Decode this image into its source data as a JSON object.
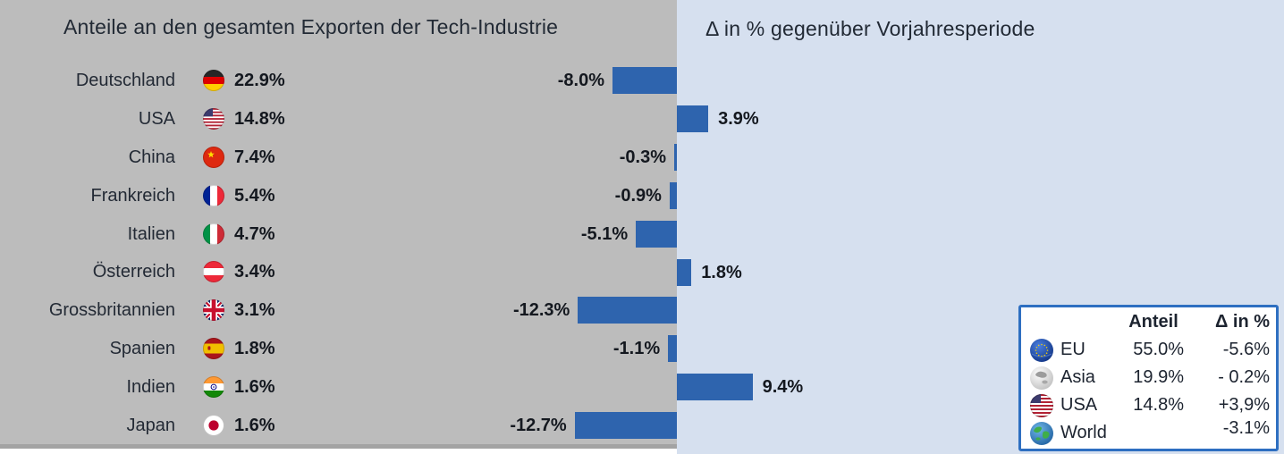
{
  "left_panel": {
    "title": "Anteile an den gesamten Exporten der Tech-Industrie"
  },
  "right_panel": {
    "title": "Δ in % gegenüber Vorjahresperiode"
  },
  "countries": [
    {
      "name": "Deutschland",
      "share": "22.9%",
      "delta": -8.0,
      "delta_label": "-8.0%",
      "flag": "germany"
    },
    {
      "name": "USA",
      "share": "14.8%",
      "delta": 3.9,
      "delta_label": "3.9%",
      "flag": "usa"
    },
    {
      "name": "China",
      "share": "7.4%",
      "delta": -0.3,
      "delta_label": "-0.3%",
      "flag": "china"
    },
    {
      "name": "Frankreich",
      "share": "5.4%",
      "delta": -0.9,
      "delta_label": "-0.9%",
      "flag": "france"
    },
    {
      "name": "Italien",
      "share": "4.7%",
      "delta": -5.1,
      "delta_label": "-5.1%",
      "flag": "italy"
    },
    {
      "name": "Österreich",
      "share": "3.4%",
      "delta": 1.8,
      "delta_label": "1.8%",
      "flag": "austria"
    },
    {
      "name": "Grossbritannien",
      "share": "3.1%",
      "delta": -12.3,
      "delta_label": "-12.3%",
      "flag": "uk"
    },
    {
      "name": "Spanien",
      "share": "1.8%",
      "delta": -1.1,
      "delta_label": "-1.1%",
      "flag": "spain"
    },
    {
      "name": "Indien",
      "share": "1.6%",
      "delta": 9.4,
      "delta_label": "9.4%",
      "flag": "india"
    },
    {
      "name": "Japan",
      "share": "1.6%",
      "delta": -12.7,
      "delta_label": "-12.7%",
      "flag": "japan"
    }
  ],
  "legend": {
    "headers": {
      "share": "Anteil",
      "delta": "Δ in %"
    },
    "rows": [
      {
        "region": "EU",
        "share": "55.0%",
        "delta": "-5.6%"
      },
      {
        "region": "Asia",
        "share": "19.9%",
        "delta": "- 0.2%"
      },
      {
        "region": "USA",
        "share": "14.8%",
        "delta": "+3,9%"
      },
      {
        "region": "World",
        "share": "",
        "delta": "-3.1%"
      }
    ]
  },
  "colors": {
    "left_panel_bg": "#bcbcbc",
    "right_panel_bg": "#d6e0ef",
    "bar": "#2e64ae",
    "legend_border": "#2e6fc1",
    "text": "#1d2430"
  },
  "chart_data": {
    "type": "bar",
    "orientation": "horizontal",
    "title": "Anteile an den gesamten Exporten der Tech-Industrie / Δ in % gegenüber Vorjahresperiode",
    "categories": [
      "Deutschland",
      "USA",
      "China",
      "Frankreich",
      "Italien",
      "Österreich",
      "Grossbritannien",
      "Spanien",
      "Indien",
      "Japan"
    ],
    "series": [
      {
        "name": "Anteil an den gesamten Exporten der Tech-Industrie (%)",
        "values": [
          22.9,
          14.8,
          7.4,
          5.4,
          4.7,
          3.4,
          3.1,
          1.8,
          1.6,
          1.6
        ]
      },
      {
        "name": "Δ in % gegenüber Vorjahresperiode",
        "values": [
          -8.0,
          3.9,
          -0.3,
          -0.9,
          -5.1,
          1.8,
          -12.3,
          -1.1,
          9.4,
          -12.7
        ]
      }
    ],
    "xlim": [
      -14,
      10
    ],
    "grid": false,
    "legend_position": "bottom-right",
    "legend_table": {
      "headers": [
        "",
        "Anteil",
        "Δ in %"
      ],
      "rows": [
        [
          "EU",
          "55.0%",
          "-5.6%"
        ],
        [
          "Asia",
          "19.9%",
          "- 0.2%"
        ],
        [
          "USA",
          "14.8%",
          "+3,9%"
        ],
        [
          "World",
          "",
          "-3.1%"
        ]
      ]
    }
  }
}
